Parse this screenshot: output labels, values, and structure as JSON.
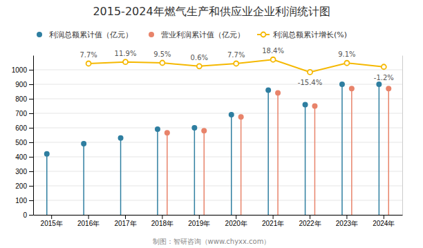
{
  "chart_data": {
    "type": "lollipop",
    "title": "2015-2024年燃气生产和供应业企业利润统计图",
    "categories": [
      "2015年",
      "2016年",
      "2017年",
      "2018年",
      "2019年",
      "2020年",
      "2021年",
      "2022年",
      "2023年",
      "2024年"
    ],
    "series": [
      {
        "name": "利润总额累计值（亿元）",
        "color": "#2e7ea0",
        "type": "lollipop",
        "marker": "circle",
        "values": [
          420,
          490,
          530,
          590,
          600,
          690,
          860,
          760,
          900,
          900
        ]
      },
      {
        "name": "营业利润累计值（亿元）",
        "color": "#e8836a",
        "type": "lollipop",
        "marker": "circle",
        "values": [
          null,
          null,
          null,
          565,
          580,
          675,
          840,
          750,
          870,
          870
        ]
      },
      {
        "name": "利润总额累计增长(%)",
        "color": "#f5b800",
        "type": "line",
        "marker": "circle",
        "axis": "y2",
        "data_labels": true,
        "values": [
          null,
          7.7,
          11.9,
          9.5,
          0.6,
          7.7,
          18.4,
          -15.4,
          9.1,
          -1.2
        ],
        "value_labels": [
          null,
          "7.7%",
          "11.9%",
          "9.5%",
          "0.6%",
          "7.7%",
          "18.4%",
          "-15.4%",
          "9.1%",
          "-1.2%"
        ]
      }
    ],
    "ylim": [
      0,
      1100
    ],
    "yticks": [
      0,
      100,
      200,
      300,
      400,
      500,
      600,
      700,
      800,
      900,
      1000
    ],
    "y2lim": [
      -400,
      30
    ],
    "y2ticks": [],
    "grid": true,
    "legend": "top",
    "footer": "制图：智研咨询（www.chyxx.com）"
  }
}
